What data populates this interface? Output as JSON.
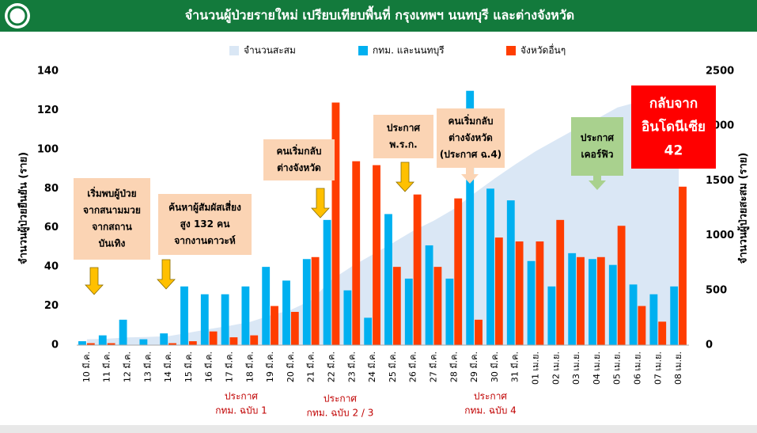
{
  "chart_data": {
    "type": "bar",
    "title": "จำนวนผู้ป่วยรายใหม่ เปรียบเทียบพื้นที่ กรุงเทพฯ นนทบุรี และต่างจังหวัด",
    "y_label": "จำนวนผู้ป่วยยืนยัน (ราย)",
    "y2_label": "จำนวนผู้ป่วยสะสม (ราย)",
    "categories": [
      "10 มี.ค.",
      "11 มี.ค.",
      "12 มี.ค.",
      "13 มี.ค.",
      "14 มี.ค.",
      "15 มี.ค.",
      "16 มี.ค.",
      "17 มี.ค.",
      "18 มี.ค.",
      "19 มี.ค.",
      "20 มี.ค.",
      "21 มี.ค.",
      "22 มี.ค.",
      "23 มี.ค.",
      "24 มี.ค.",
      "25 มี.ค.",
      "26 มี.ค.",
      "27 มี.ค.",
      "28 มี.ค.",
      "29 มี.ค.",
      "30 มี.ค.",
      "31 มี.ค.",
      "01 เม.ย.",
      "02 เม.ย.",
      "03 เม.ย.",
      "04 เม.ย.",
      "05 เม.ย.",
      "06 เม.ย.",
      "07 เม.ย.",
      "08 เม.ย."
    ],
    "series": [
      {
        "name": "จำนวนสะสม",
        "color": "#dae7f5",
        "type": "area",
        "axis": "y2",
        "values": [
          53,
          59,
          70,
          75,
          82,
          114,
          147,
          177,
          212,
          272,
          322,
          411,
          599,
          721,
          827,
          934,
          1045,
          1136,
          1245,
          1388,
          1524,
          1651,
          1771,
          1875,
          1978,
          2067,
          2169,
          2220,
          2258,
          2369
        ]
      },
      {
        "name": "กทม. และนนทบุรี",
        "color": "#00b0f0",
        "values": [
          2,
          5,
          13,
          3,
          6,
          30,
          26,
          26,
          30,
          40,
          33,
          44,
          64,
          28,
          14,
          67,
          34,
          51,
          34,
          130,
          80,
          74,
          43,
          30,
          47,
          44,
          41,
          31,
          26,
          30
        ]
      },
      {
        "name": "จังหวัดอื่นๆ",
        "color": "#ff3d00",
        "values": [
          1,
          1,
          0,
          0,
          1,
          2,
          7,
          4,
          5,
          20,
          17,
          45,
          124,
          94,
          92,
          40,
          77,
          40,
          75,
          13,
          55,
          53,
          53,
          64,
          45,
          45,
          61,
          20,
          12,
          81
        ]
      }
    ],
    "ylim": [
      0,
      140
    ],
    "yticks": [
      0,
      20,
      40,
      60,
      80,
      100,
      120,
      140
    ],
    "y2lim": [
      0,
      2500
    ],
    "y2ticks": [
      0,
      500,
      1000,
      1500,
      2000,
      2500
    ],
    "annotations": [
      {
        "lines": [
          "เริ่มพบผู้ป่วย",
          "จากสนามมวย",
          "จากสถาน",
          "บันเทิง"
        ]
      },
      {
        "lines": [
          "ค้นหาผู้สัมผัสเสี่ยง",
          "สูง 132 คน",
          "จากงานดาวะห์"
        ]
      },
      {
        "lines": [
          "คนเริ่มกลับ",
          "ต่างจังหวัด"
        ]
      },
      {
        "lines": [
          "ประกาศ",
          "พ.ร.ก."
        ]
      },
      {
        "lines": [
          "คนเริ่มกลับ",
          "ต่างจังหวัด",
          "(ประกาศ ฉ.4)"
        ]
      },
      {
        "lines": [
          "ประกาศ",
          "เคอร์ฟิว"
        ]
      },
      {
        "lines": [
          "กลับจาก",
          "อินโดนีเซีย",
          "42"
        ]
      }
    ],
    "notes": [
      {
        "lines": [
          "ประกาศ",
          "กทม. ฉบับ 1"
        ]
      },
      {
        "lines": [
          "ประกาศ",
          "กทม. ฉบับ 2 / 3"
        ]
      },
      {
        "lines": [
          "ประกาศ",
          "กทม. ฉบับ 4"
        ]
      }
    ]
  }
}
